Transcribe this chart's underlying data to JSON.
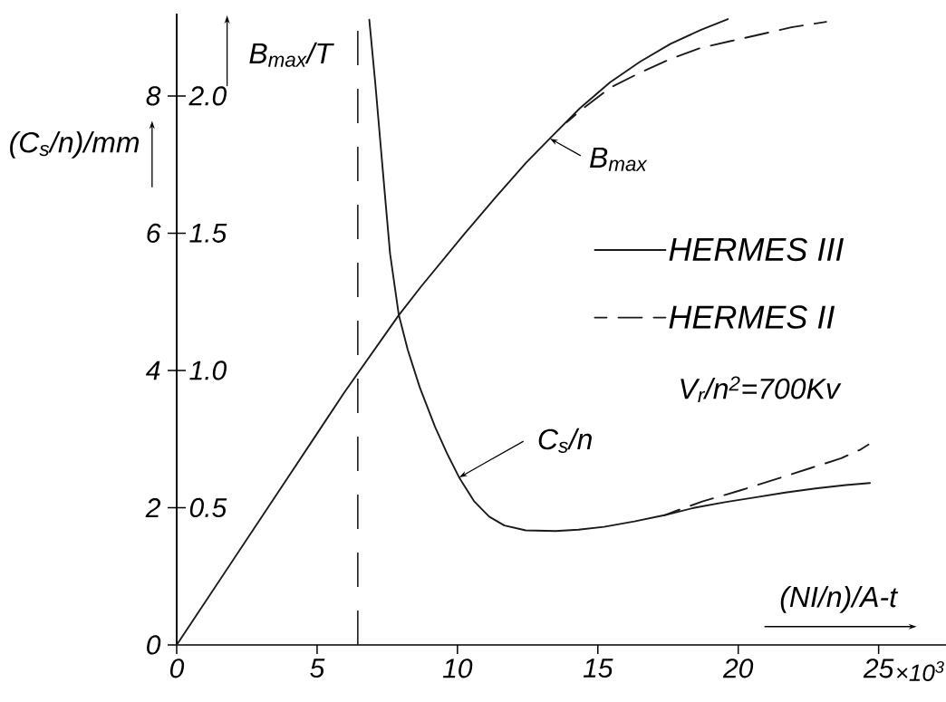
{
  "chart_data": {
    "type": "line",
    "xlabel": "(NI/n)/A-t",
    "ylabel": "(C$_{s}$/n)/mm",
    "y2label": "B$_{max}$/T",
    "xlim": [
      0,
      27.4
    ],
    "xticks": [
      0,
      5,
      10,
      15,
      20,
      25
    ],
    "ylim": [
      0,
      9.2
    ],
    "yticks": [
      0,
      2,
      4,
      6,
      8
    ],
    "y2lim": [
      0,
      2.3
    ],
    "y2ticks": [
      0.5,
      {
        "value": 1.0,
        "label": "1.0"
      },
      1.5,
      {
        "value": 2.0,
        "label": "2.0"
      }
    ],
    "series": [
      {
        "name": "HERMES III",
        "color": "#1a1a1a",
        "axis": "y2",
        "line_style": "solid",
        "x": [
          0,
          2.5,
          5,
          5.97,
          7.9,
          8.7,
          10.27,
          11.35,
          12.43,
          13.29,
          14.36,
          15.44,
          16.51,
          17.59,
          18.66,
          19.63
        ],
        "values": [
          0,
          0.385,
          0.77,
          0.92,
          1.2,
          1.305,
          1.5,
          1.63,
          1.755,
          1.845,
          1.955,
          2.05,
          2.125,
          2.19,
          2.24,
          2.28
        ]
      },
      {
        "name": "HERMES II",
        "color": "#1a1a1a",
        "axis": "y2",
        "line_style": "dashed",
        "x": [
          13.9,
          14.36,
          15.44,
          16.51,
          17.59,
          18.66,
          19.74,
          20.82,
          21.89,
          23.13
        ],
        "values": [
          1.905,
          1.945,
          2.03,
          2.085,
          2.135,
          2.175,
          2.2,
          2.225,
          2.25,
          2.27
        ]
      },
      {
        "color": "#1a1a1a",
        "line_style": "solid",
        "x": [
          6.86,
          7.07,
          7.27,
          7.45,
          7.6,
          7.91,
          8.23,
          8.66,
          9.2,
          9.63,
          10.06,
          10.6,
          11.13,
          11.67,
          12.43,
          13.5,
          14.31,
          15.22,
          16.3,
          17.37,
          18.45,
          19.53,
          20.6,
          21.68,
          22.75,
          23.83,
          24.69
        ],
        "values": [
          9.11,
          8.2,
          7.25,
          6.4,
          5.7,
          4.81,
          4.3,
          3.75,
          3.18,
          2.79,
          2.44,
          2.09,
          1.87,
          1.74,
          1.67,
          1.66,
          1.68,
          1.72,
          1.8,
          1.89,
          2.0,
          2.08,
          2.15,
          2.22,
          2.28,
          2.33,
          2.36
        ]
      },
      {
        "color": "#1a1a1a",
        "line_style": "dashed",
        "x": [
          17.37,
          17.9,
          18.72,
          20.06,
          21.3,
          22.6,
          23.67,
          24.37,
          24.64
        ],
        "values": [
          1.89,
          1.97,
          2.09,
          2.25,
          2.41,
          2.58,
          2.72,
          2.85,
          2.92
        ]
      }
    ],
    "ref_lines": [
      {
        "axis": "x",
        "value": 6.45,
        "line_style": "dashed",
        "color": "#1a1a1a"
      }
    ],
    "annotations": [
      {
        "text": "B$_{max}$",
        "x": 13.29,
        "y": 7.38
      },
      {
        "text": "C$_{s}$/n",
        "x": 10.06,
        "y": 2.44
      },
      "V$_{r}$/n$^{2}$=700Kv",
      "×10$^{3}$"
    ],
    "legend": "right"
  }
}
